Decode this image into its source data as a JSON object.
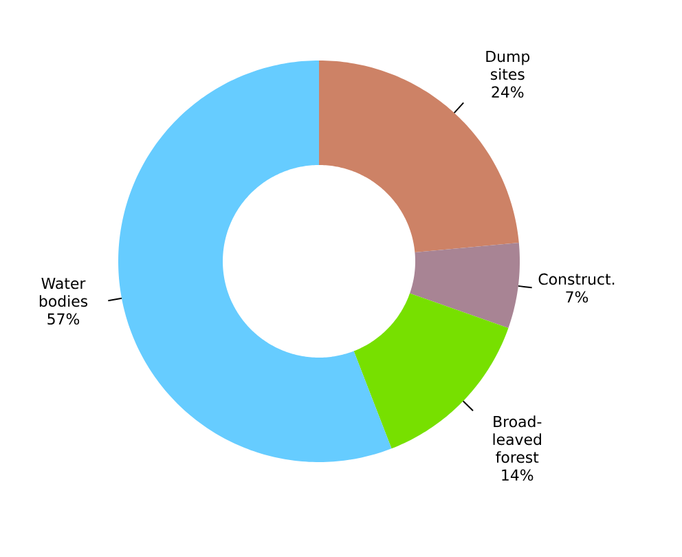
{
  "chart_data": {
    "type": "donut",
    "categories": [
      "Dump sites",
      "Construct.",
      "Broad-leaved forest",
      "Water bodies"
    ],
    "values": [
      24,
      7,
      14,
      57
    ],
    "value_labels": [
      "24%",
      "7%",
      "14%",
      "57%"
    ],
    "colors": [
      "#cd8266",
      "#a88494",
      "#77e000",
      "#66ccff"
    ]
  }
}
